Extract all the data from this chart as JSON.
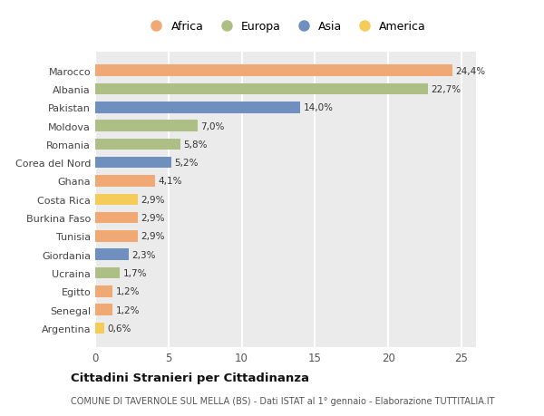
{
  "categories": [
    "Marocco",
    "Albania",
    "Pakistan",
    "Moldova",
    "Romania",
    "Corea del Nord",
    "Ghana",
    "Costa Rica",
    "Burkina Faso",
    "Tunisia",
    "Giordania",
    "Ucraina",
    "Egitto",
    "Senegal",
    "Argentina"
  ],
  "values": [
    24.4,
    22.7,
    14.0,
    7.0,
    5.8,
    5.2,
    4.1,
    2.9,
    2.9,
    2.9,
    2.3,
    1.7,
    1.2,
    1.2,
    0.6
  ],
  "labels": [
    "24,4%",
    "22,7%",
    "14,0%",
    "7,0%",
    "5,8%",
    "5,2%",
    "4,1%",
    "2,9%",
    "2,9%",
    "2,9%",
    "2,3%",
    "1,7%",
    "1,2%",
    "1,2%",
    "0,6%"
  ],
  "continents": [
    "Africa",
    "Europa",
    "Asia",
    "Europa",
    "Europa",
    "Asia",
    "Africa",
    "America",
    "Africa",
    "Africa",
    "Asia",
    "Europa",
    "Africa",
    "Africa",
    "America"
  ],
  "colors": {
    "Africa": "#F0A875",
    "Europa": "#ADBF84",
    "Asia": "#6F8FBF",
    "America": "#F5CC5A"
  },
  "xlim": [
    0,
    26
  ],
  "xticks": [
    0,
    5,
    10,
    15,
    20,
    25
  ],
  "title": "Cittadini Stranieri per Cittadinanza",
  "subtitle": "COMUNE DI TAVERNOLE SUL MELLA (BS) - Dati ISTAT al 1° gennaio - Elaborazione TUTTITALIA.IT",
  "background_color": "#ffffff",
  "plot_bg_color": "#ebebeb",
  "grid_color": "#ffffff",
  "legend_order": [
    "Africa",
    "Europa",
    "Asia",
    "America"
  ]
}
